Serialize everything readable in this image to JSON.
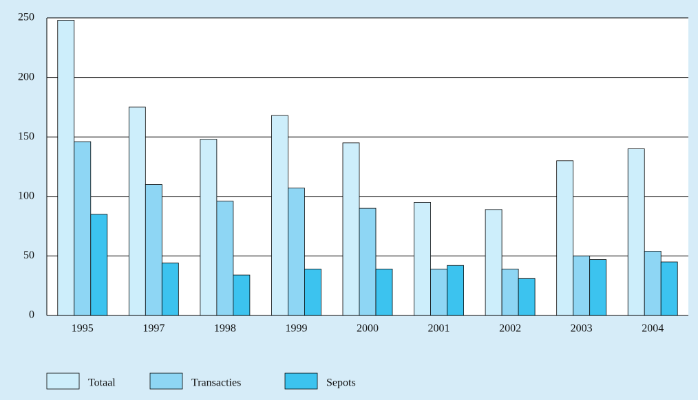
{
  "chart_data": {
    "type": "bar",
    "categories": [
      "1995",
      "1997",
      "1998",
      "1999",
      "2000",
      "2001",
      "2002",
      "2003",
      "2004"
    ],
    "series": [
      {
        "name": "Totaal",
        "color": "#cdeefb",
        "values": [
          248,
          175,
          148,
          168,
          145,
          95,
          89,
          130,
          140
        ]
      },
      {
        "name": "Transacties",
        "color": "#8ed6f4",
        "values": [
          146,
          110,
          96,
          107,
          90,
          39,
          39,
          50,
          54
        ]
      },
      {
        "name": "Sepots",
        "color": "#3cc3ef",
        "values": [
          85,
          44,
          34,
          39,
          39,
          42,
          31,
          47,
          45
        ]
      }
    ],
    "ylim": [
      0,
      250
    ],
    "yticks": [
      0,
      50,
      100,
      150,
      200,
      250
    ],
    "grid": true,
    "legend": "bottom"
  }
}
